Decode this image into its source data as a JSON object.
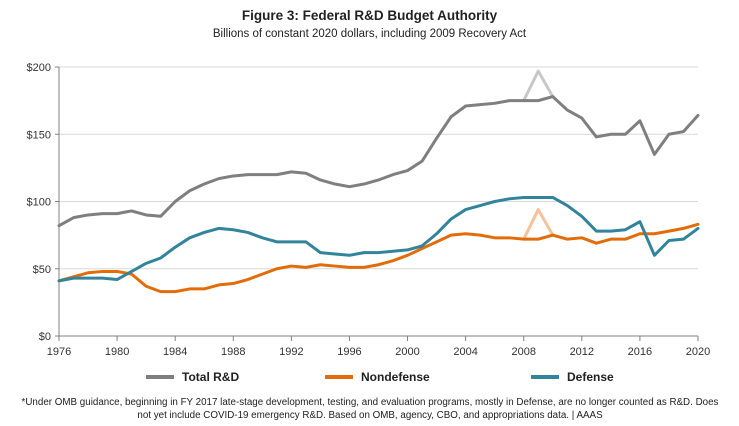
{
  "header": {
    "title": "Figure 3: Federal R&D Budget Authority",
    "subtitle": "Billions of constant 2020 dollars, including 2009 Recovery Act"
  },
  "footnote": {
    "line1": "*Under OMB guidance, beginning in FY 2017 late-stage development, testing, and evaluation programs, mostly in Defense,  are no longer counted as R&D. Does",
    "line2": "not yet include COVID-19 emergency R&D. Based on OMB, agency, CBO, and appropriations data. | AAAS"
  },
  "chart_data": {
    "type": "line",
    "title": "Figure 3: Federal R&D Budget Authority",
    "subtitle": "Billions of constant 2020 dollars, including 2009 Recovery Act",
    "xlim": [
      1976,
      2020
    ],
    "ylim": [
      0,
      200
    ],
    "x_ticks": [
      "1976",
      "1980",
      "1984",
      "1988",
      "1992",
      "1996",
      "2000",
      "2004",
      "2008",
      "2012",
      "2016",
      "2020"
    ],
    "y_ticks": [
      "$0",
      "$50",
      "$100",
      "$150",
      "$200"
    ],
    "y_tick_values": [
      0,
      50,
      100,
      150,
      200
    ],
    "x_tick_values": [
      1976,
      1980,
      1984,
      1988,
      1992,
      1996,
      2000,
      2004,
      2008,
      2012,
      2016,
      2020
    ],
    "grid": "horizontal",
    "legend_position": "bottom",
    "x": [
      1976,
      1977,
      1978,
      1979,
      1980,
      1981,
      1982,
      1983,
      1984,
      1985,
      1986,
      1987,
      1988,
      1989,
      1990,
      1991,
      1992,
      1993,
      1994,
      1995,
      1996,
      1997,
      1998,
      1999,
      2000,
      2001,
      2002,
      2003,
      2004,
      2005,
      2006,
      2007,
      2008,
      2009,
      2010,
      2011,
      2012,
      2013,
      2014,
      2015,
      2016,
      2017,
      2018,
      2019,
      2020
    ],
    "series": [
      {
        "name": "Total R&D",
        "color": "#7f7f7f",
        "values": [
          82,
          88,
          90,
          91,
          91,
          93,
          90,
          89,
          100,
          108,
          113,
          117,
          119,
          120,
          120,
          120,
          122,
          121,
          116,
          113,
          111,
          113,
          116,
          120,
          123,
          130,
          147,
          163,
          171,
          172,
          173,
          175,
          175,
          175,
          178,
          168,
          162,
          148,
          150,
          150,
          160,
          135,
          150,
          152,
          164
        ]
      },
      {
        "name": "Nondefense",
        "color": "#e36c0a",
        "values": [
          41,
          44,
          47,
          48,
          48,
          46,
          37,
          33,
          33,
          35,
          35,
          38,
          39,
          42,
          46,
          50,
          52,
          51,
          53,
          52,
          51,
          51,
          53,
          56,
          60,
          65,
          70,
          75,
          76,
          75,
          73,
          73,
          72,
          72,
          75,
          72,
          73,
          69,
          72,
          72,
          76,
          76,
          78,
          80,
          83
        ]
      },
      {
        "name": "Defense",
        "color": "#31849b",
        "values": [
          41,
          43,
          43,
          43,
          42,
          48,
          54,
          58,
          66,
          73,
          77,
          80,
          79,
          77,
          73,
          70,
          70,
          70,
          62,
          61,
          60,
          62,
          62,
          63,
          64,
          67,
          76,
          87,
          94,
          97,
          100,
          102,
          103,
          103,
          103,
          97,
          89,
          78,
          78,
          79,
          85,
          60,
          71,
          72,
          80
        ]
      }
    ],
    "recovery_act_overlay": [
      {
        "series": "Total R&D",
        "color": "#c8c8c8",
        "x": [
          2008,
          2009,
          2010
        ],
        "values": [
          175,
          197,
          178
        ]
      },
      {
        "series": "Nondefense",
        "color": "#f5c29a",
        "x": [
          2008,
          2009,
          2010
        ],
        "values": [
          72,
          94,
          75
        ]
      }
    ]
  }
}
